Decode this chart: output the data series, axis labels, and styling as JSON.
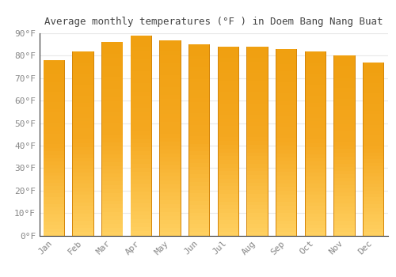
{
  "title": "Average monthly temperatures (°F ) in Doem Bang Nang Buat",
  "months": [
    "Jan",
    "Feb",
    "Mar",
    "Apr",
    "May",
    "Jun",
    "Jul",
    "Aug",
    "Sep",
    "Oct",
    "Nov",
    "Dec"
  ],
  "values": [
    78,
    82,
    86,
    89,
    87,
    85,
    84,
    84,
    83,
    82,
    80,
    77
  ],
  "bar_color_center": "#F5A623",
  "bar_color_edge": "#E8960A",
  "bar_color_light": "#FFD070",
  "background_color": "#FFFFFF",
  "plot_bg_color": "#FAFAFA",
  "ylim": [
    0,
    90
  ],
  "yticks": [
    0,
    10,
    20,
    30,
    40,
    50,
    60,
    70,
    80,
    90
  ],
  "ytick_labels": [
    "0°F",
    "10°F",
    "20°F",
    "30°F",
    "40°F",
    "50°F",
    "60°F",
    "70°F",
    "80°F",
    "90°F"
  ],
  "title_fontsize": 9,
  "tick_fontsize": 8,
  "grid_color": "#E8E8E8",
  "bar_edge_color": "#CC8800"
}
